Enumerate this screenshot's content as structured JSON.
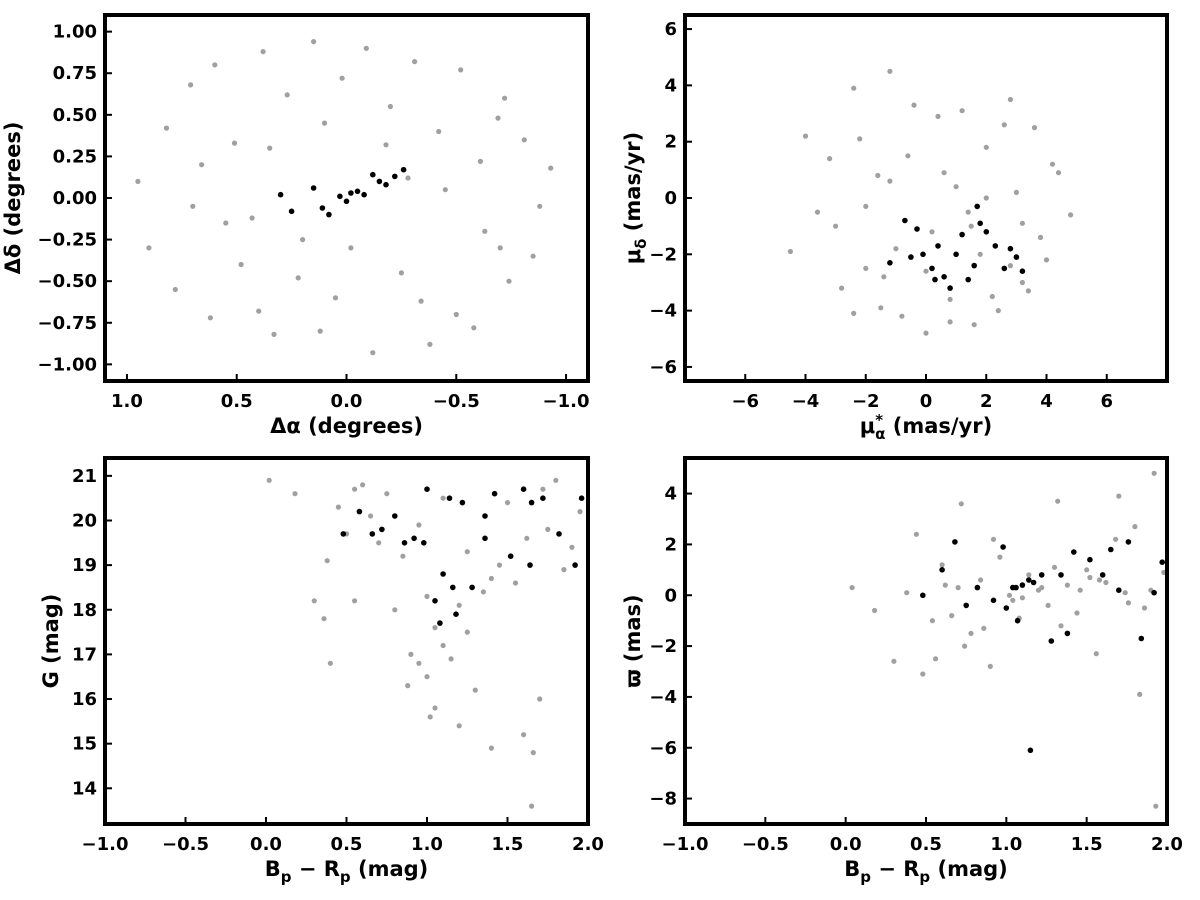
{
  "chart_data": [
    {
      "type": "scatter",
      "xlabel": "Δα (degrees)",
      "ylabel": "Δδ (degrees)",
      "xlim": [
        1.1,
        -1.1
      ],
      "ylim": [
        -1.1,
        1.1
      ],
      "xticks": [
        1.0,
        0.5,
        0.0,
        -0.5,
        -1.0
      ],
      "xtick_labels": [
        "1.0",
        "0.5",
        "0.0",
        "−0.5",
        "−1.0"
      ],
      "yticks": [
        1.0,
        0.75,
        0.5,
        0.25,
        0.0,
        -0.25,
        -0.5,
        -0.75,
        -1.0
      ],
      "ytick_labels": [
        "1.00",
        "0.75",
        "0.50",
        "0.25",
        "0.00",
        "−0.25",
        "−0.50",
        "−0.75",
        "−1.00"
      ],
      "series": [
        {
          "color": "#a0a0a0",
          "x": [
            0.95,
            0.82,
            0.71,
            0.6,
            0.51,
            0.43,
            0.38,
            0.27,
            0.15,
            0.02,
            -0.09,
            -0.2,
            -0.31,
            -0.42,
            -0.52,
            -0.61,
            -0.72,
            -0.81,
            -0.88,
            -0.93,
            0.9,
            0.78,
            0.62,
            0.48,
            0.33,
            0.2,
            0.05,
            -0.12,
            -0.25,
            -0.38,
            -0.5,
            -0.63,
            -0.74,
            -0.85,
            0.66,
            0.55,
            0.35,
            0.22,
            0.1,
            -0.02,
            -0.18,
            -0.34,
            -0.45,
            -0.58,
            -0.69,
            0.4,
            0.12,
            -0.28,
            0.7,
            -0.7
          ],
          "y": [
            0.1,
            0.42,
            0.68,
            0.8,
            0.33,
            -0.12,
            0.88,
            0.62,
            0.94,
            0.72,
            0.9,
            0.55,
            0.82,
            0.4,
            0.77,
            0.22,
            0.6,
            0.35,
            -0.05,
            0.18,
            -0.3,
            -0.55,
            -0.72,
            -0.4,
            -0.82,
            -0.25,
            -0.6,
            -0.93,
            -0.45,
            -0.88,
            -0.7,
            -0.2,
            -0.5,
            -0.35,
            0.2,
            -0.15,
            0.3,
            -0.48,
            0.45,
            -0.3,
            0.32,
            -0.62,
            0.05,
            -0.78,
            0.48,
            -0.68,
            -0.8,
            0.12,
            -0.05,
            -0.3
          ]
        },
        {
          "color": "#000000",
          "x": [
            0.3,
            0.25,
            0.15,
            0.08,
            0.03,
            -0.02,
            -0.08,
            -0.12,
            -0.18,
            -0.22,
            -0.26,
            0.11,
            0.0,
            -0.05,
            -0.15
          ],
          "y": [
            0.02,
            -0.08,
            0.06,
            -0.1,
            0.01,
            0.03,
            0.02,
            0.14,
            0.08,
            0.13,
            0.17,
            -0.06,
            -0.02,
            0.04,
            0.1
          ]
        }
      ]
    },
    {
      "type": "scatter",
      "xlabel": "μα* (mas/yr)",
      "xlabel_parts": {
        "symbol": "μ",
        "sub": "α",
        "sup": "*",
        "unit": " (mas/yr)"
      },
      "ylabel": "μδ (mas/yr)",
      "ylabel_parts": {
        "symbol": "μ",
        "sub": "δ",
        "unit": " (mas/yr)"
      },
      "xlim": [
        -8,
        8
      ],
      "ylim": [
        -6.5,
        6.5
      ],
      "xticks": [
        -6,
        -4,
        -2,
        0,
        2,
        4,
        6
      ],
      "xtick_labels": [
        "−6",
        "−4",
        "−2",
        "0",
        "2",
        "4",
        "6"
      ],
      "yticks": [
        -6,
        -4,
        -2,
        0,
        2,
        4,
        6
      ],
      "ytick_labels": [
        "−6",
        "−4",
        "−2",
        "0",
        "2",
        "4",
        "6"
      ],
      "series": [
        {
          "color": "#a0a0a0",
          "x": [
            -4.5,
            -4.0,
            -3.6,
            -3.2,
            -2.8,
            -2.4,
            -2.0,
            -1.6,
            -1.2,
            -0.8,
            -0.4,
            0.0,
            0.4,
            0.8,
            1.2,
            1.6,
            2.0,
            2.4,
            2.8,
            3.2,
            3.6,
            4.0,
            4.4,
            4.8,
            -3.0,
            -2.2,
            -1.4,
            -0.6,
            0.2,
            1.0,
            1.8,
            2.6,
            3.4,
            4.2,
            -2.0,
            -1.0,
            0.6,
            1.4,
            2.2,
            3.0,
            3.8,
            -1.5,
            0.0,
            1.5,
            2.8,
            -2.4,
            3.2,
            -1.2,
            0.8,
            2.0
          ],
          "y": [
            -1.9,
            2.2,
            -0.5,
            1.4,
            -3.2,
            3.9,
            -2.5,
            0.8,
            4.5,
            -4.2,
            3.3,
            -4.8,
            2.9,
            -3.6,
            3.1,
            -4.5,
            1.8,
            -4.0,
            3.5,
            -3.0,
            2.5,
            -2.2,
            0.9,
            -0.6,
            -1.0,
            2.1,
            -2.8,
            1.5,
            -1.2,
            0.4,
            -2.0,
            2.6,
            -3.3,
            1.2,
            -0.3,
            -1.8,
            0.9,
            -0.5,
            -3.5,
            0.2,
            -1.4,
            -3.9,
            -2.6,
            -1.0,
            -2.4,
            -4.1,
            -0.9,
            0.6,
            -4.4,
            0.0
          ]
        },
        {
          "color": "#000000",
          "x": [
            -1.2,
            -0.7,
            -0.5,
            -0.3,
            -0.1,
            0.2,
            0.4,
            0.6,
            0.8,
            1.0,
            1.2,
            1.4,
            1.6,
            1.8,
            2.0,
            2.3,
            2.6,
            2.8,
            3.0,
            3.2,
            1.7,
            0.3
          ],
          "y": [
            -2.3,
            -0.8,
            -2.1,
            -1.1,
            -2.0,
            -2.5,
            -1.7,
            -2.8,
            -3.2,
            -2.0,
            -1.3,
            -2.9,
            -2.4,
            -0.9,
            -1.2,
            -1.7,
            -2.5,
            -1.8,
            -2.1,
            -2.6,
            -0.3,
            -2.9
          ]
        }
      ]
    },
    {
      "type": "scatter",
      "xlabel": "Bp − Rp (mag)",
      "xlabel_parts": {
        "a": "B",
        "a_sub": "p",
        "op": " − ",
        "b": "R",
        "b_sub": "p",
        "unit": " (mag)"
      },
      "ylabel": "G (mag)",
      "xlim": [
        -1.0,
        2.0
      ],
      "ylim": [
        13.2,
        21.4
      ],
      "xticks": [
        -1.0,
        -0.5,
        0.0,
        0.5,
        1.0,
        1.5,
        2.0
      ],
      "xtick_labels": [
        "−1.0",
        "−0.5",
        "0.0",
        "0.5",
        "1.0",
        "1.5",
        "2.0"
      ],
      "yticks": [
        14,
        15,
        16,
        17,
        18,
        19,
        20,
        21
      ],
      "ytick_labels": [
        "14",
        "15",
        "16",
        "17",
        "18",
        "19",
        "20",
        "21"
      ],
      "series": [
        {
          "color": "#a0a0a0",
          "x": [
            0.02,
            0.18,
            0.3,
            0.36,
            0.4,
            0.45,
            0.5,
            0.55,
            0.6,
            0.65,
            0.7,
            0.75,
            0.8,
            0.85,
            0.9,
            0.95,
            1.0,
            1.05,
            1.1,
            1.15,
            1.2,
            1.25,
            1.3,
            1.35,
            1.4,
            1.45,
            1.5,
            1.55,
            1.6,
            1.65,
            1.7,
            1.75,
            1.8,
            1.85,
            1.9,
            1.95,
            0.95,
            1.0,
            1.05,
            1.1,
            1.2,
            1.25,
            1.4,
            1.62,
            1.66,
            1.72,
            0.38,
            0.55,
            0.88,
            1.02
          ],
          "y": [
            20.9,
            20.6,
            18.2,
            17.8,
            16.8,
            20.3,
            19.7,
            18.2,
            20.8,
            20.1,
            19.5,
            20.6,
            18.0,
            19.2,
            17.0,
            16.8,
            16.5,
            15.8,
            17.2,
            16.9,
            15.4,
            17.5,
            16.2,
            18.4,
            14.9,
            19.0,
            20.4,
            18.6,
            15.2,
            13.6,
            16.0,
            19.8,
            20.9,
            18.9,
            19.4,
            20.2,
            19.9,
            18.3,
            17.6,
            20.5,
            18.1,
            19.3,
            18.7,
            19.6,
            14.8,
            20.7,
            19.1,
            20.7,
            16.3,
            15.6
          ]
        },
        {
          "color": "#000000",
          "x": [
            0.48,
            0.58,
            0.66,
            0.72,
            0.8,
            0.86,
            0.92,
            0.98,
            1.0,
            1.05,
            1.08,
            1.1,
            1.14,
            1.18,
            1.22,
            1.28,
            1.36,
            1.42,
            1.52,
            1.6,
            1.65,
            1.72,
            1.82,
            1.92,
            1.96,
            1.64,
            1.36,
            1.16
          ],
          "y": [
            19.7,
            20.2,
            19.7,
            19.8,
            20.1,
            19.5,
            19.6,
            19.5,
            20.7,
            18.2,
            17.7,
            18.8,
            20.5,
            17.9,
            20.4,
            18.5,
            19.6,
            20.6,
            19.2,
            20.7,
            20.4,
            20.5,
            19.7,
            19.0,
            20.5,
            19.0,
            20.1,
            18.5
          ]
        }
      ]
    },
    {
      "type": "scatter",
      "xlabel": "Bp − Rp (mag)",
      "xlabel_parts": {
        "a": "B",
        "a_sub": "p",
        "op": " − ",
        "b": "R",
        "b_sub": "p",
        "unit": " (mag)"
      },
      "ylabel": "ϖ (mas)",
      "xlim": [
        -1.0,
        2.0
      ],
      "ylim": [
        -9.0,
        5.4
      ],
      "xticks": [
        -1.0,
        -0.5,
        0.0,
        0.5,
        1.0,
        1.5,
        2.0
      ],
      "xtick_labels": [
        "−1.0",
        "−0.5",
        "0.0",
        "0.5",
        "1.0",
        "1.5",
        "2.0"
      ],
      "yticks": [
        -8,
        -6,
        -4,
        -2,
        0,
        2,
        4
      ],
      "ytick_labels": [
        "−8",
        "−6",
        "−4",
        "−2",
        "0",
        "2",
        "4"
      ],
      "series": [
        {
          "color": "#a0a0a0",
          "x": [
            0.04,
            0.18,
            0.3,
            0.38,
            0.44,
            0.48,
            0.54,
            0.6,
            0.66,
            0.72,
            0.78,
            0.84,
            0.9,
            0.96,
            1.02,
            1.08,
            1.14,
            1.2,
            1.26,
            1.32,
            1.38,
            1.44,
            1.5,
            1.56,
            1.62,
            1.68,
            1.74,
            1.8,
            1.86,
            1.92,
            1.98,
            0.7,
            0.92,
            1.34,
            1.7,
            1.83,
            1.93,
            0.56,
            0.74,
            1.1,
            1.3,
            1.46,
            1.58,
            1.76,
            0.62,
            1.04,
            1.22,
            1.52,
            1.9,
            0.86
          ],
          "y": [
            0.3,
            -0.6,
            -2.6,
            0.1,
            2.4,
            -3.1,
            -1.0,
            1.2,
            -0.8,
            3.6,
            -1.5,
            0.6,
            -2.8,
            1.5,
            0.0,
            -0.9,
            0.8,
            0.2,
            -0.4,
            3.7,
            0.4,
            -0.7,
            1.0,
            -2.3,
            0.5,
            2.2,
            0.1,
            2.7,
            -0.5,
            4.8,
            0.9,
            0.3,
            2.2,
            -1.2,
            3.9,
            -3.9,
            -8.3,
            -2.5,
            -2.0,
            -0.1,
            1.1,
            0.2,
            0.6,
            -0.3,
            0.4,
            -0.2,
            0.3,
            0.7,
            0.2,
            -1.3
          ]
        },
        {
          "color": "#000000",
          "x": [
            0.48,
            0.6,
            0.68,
            0.75,
            0.82,
            0.92,
            0.98,
            1.0,
            1.04,
            1.07,
            1.1,
            1.14,
            1.17,
            1.22,
            1.28,
            1.34,
            1.38,
            1.42,
            1.52,
            1.6,
            1.65,
            1.7,
            1.76,
            1.84,
            1.92,
            1.97,
            1.15,
            1.06
          ],
          "y": [
            0.0,
            1.0,
            2.1,
            -0.4,
            0.3,
            -0.2,
            1.9,
            -0.5,
            0.3,
            -1.0,
            0.4,
            0.6,
            0.5,
            0.8,
            -1.8,
            0.8,
            -1.5,
            1.7,
            1.4,
            0.8,
            1.8,
            0.2,
            2.1,
            -1.7,
            0.1,
            1.3,
            -6.1,
            0.3
          ]
        }
      ]
    }
  ]
}
